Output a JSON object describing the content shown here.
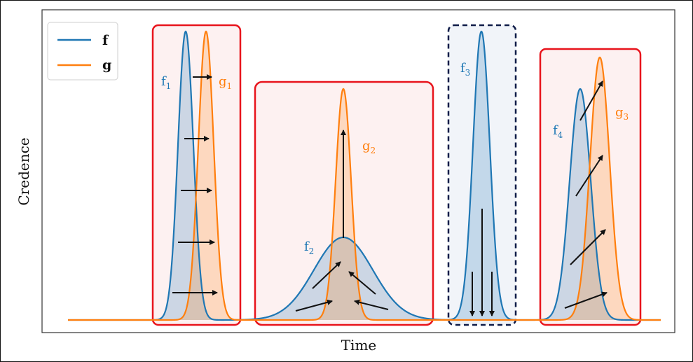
{
  "axes": {
    "xlabel": "Time",
    "ylabel": "Credence"
  },
  "legend": {
    "placement": "top-left",
    "items": [
      {
        "label": "f",
        "color": "#1f77b4"
      },
      {
        "label": "g",
        "color": "#ff7f0e"
      }
    ]
  },
  "colors": {
    "f": "#1f77b4",
    "g": "#ff7f0e",
    "box_red": "#e8141c",
    "box_navy": "#0f1c48",
    "box_red_fill": "#fdf1f1",
    "box_navy_fill": "#f1f4f9"
  },
  "labels": {
    "f1": {
      "base": "f",
      "sub": "1"
    },
    "g1": {
      "base": "g",
      "sub": "1"
    },
    "f2": {
      "base": "f",
      "sub": "2"
    },
    "g2": {
      "base": "g",
      "sub": "2"
    },
    "f3": {
      "base": "f",
      "sub": "3"
    },
    "f4": {
      "base": "f",
      "sub": "4"
    },
    "g3": {
      "base": "g",
      "sub": "3"
    }
  },
  "chart_data": {
    "type": "line",
    "xlabel": "Time",
    "ylabel": "Credence",
    "series": [
      {
        "name": "f",
        "peaks": [
          {
            "center": 265,
            "height": 412,
            "sigma": 11
          },
          {
            "center": 490,
            "height": 118,
            "sigma": 42
          },
          {
            "center": 687,
            "height": 412,
            "sigma": 12
          },
          {
            "center": 828,
            "height": 330,
            "sigma": 15
          }
        ]
      },
      {
        "name": "g",
        "peaks": [
          {
            "center": 294,
            "height": 412,
            "sigma": 11
          },
          {
            "center": 490,
            "height": 330,
            "sigma": 11
          },
          {
            "center": 856,
            "height": 375,
            "sigma": 14
          }
        ]
      }
    ]
  }
}
